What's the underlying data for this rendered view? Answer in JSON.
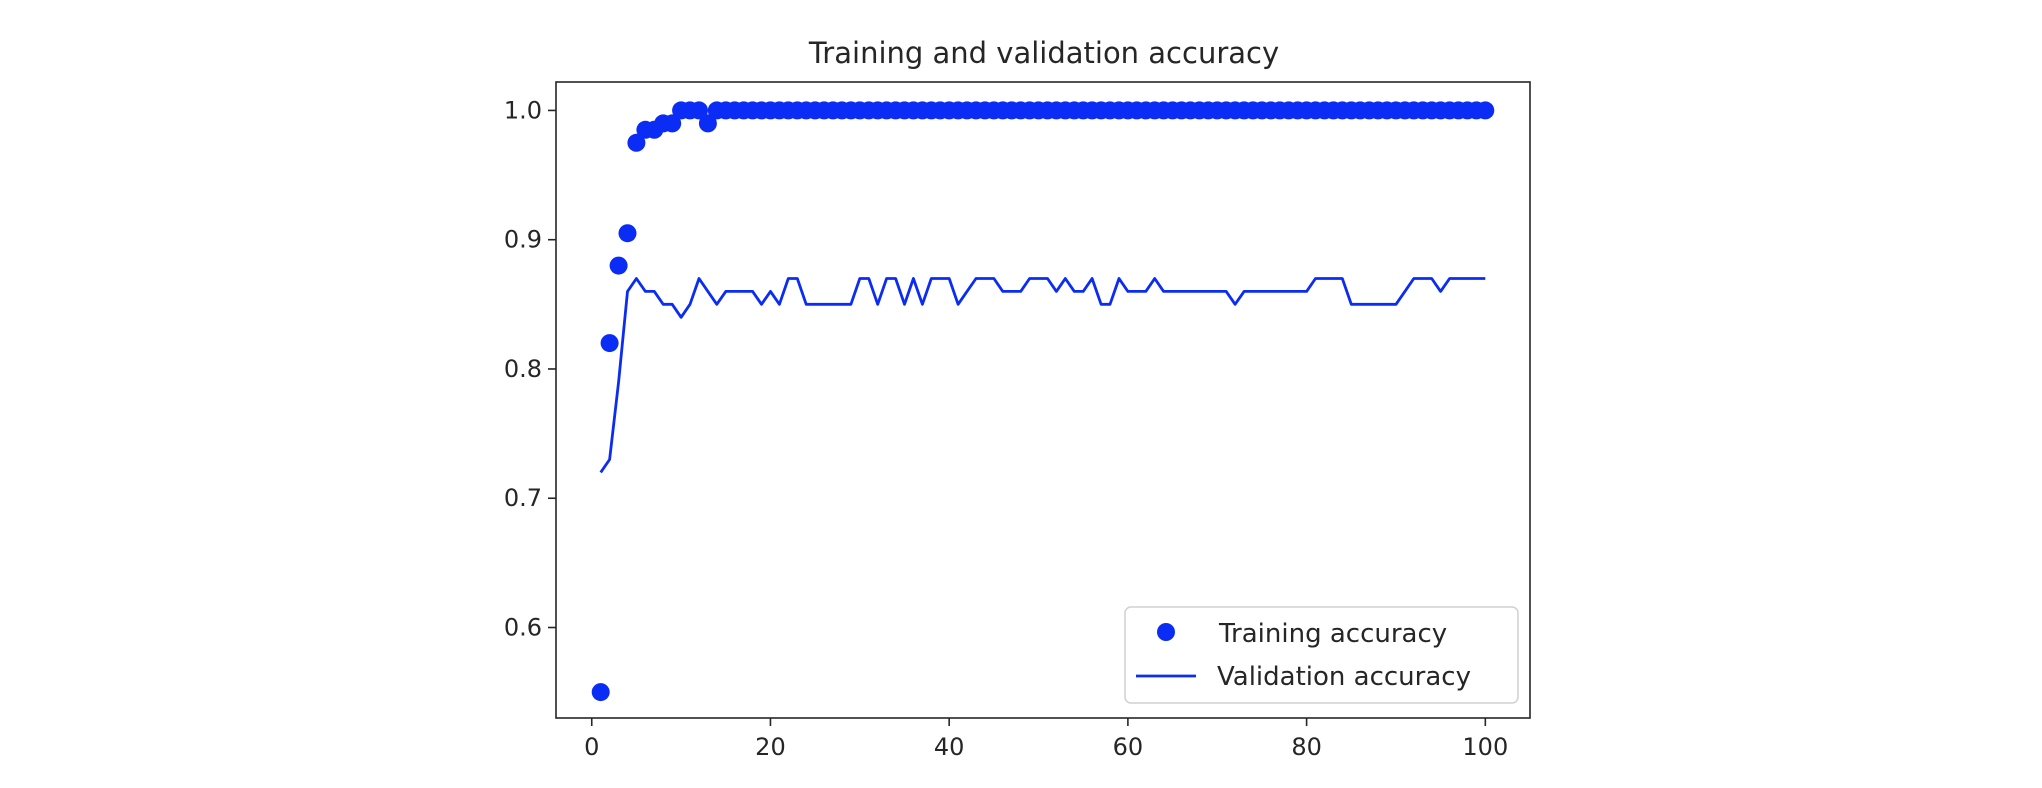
{
  "chart_data": {
    "type": "line",
    "title": "Training and validation accuracy",
    "xlabel": "",
    "ylabel": "",
    "xlim": [
      -4,
      105
    ],
    "ylim": [
      0.53,
      1.022
    ],
    "x_ticks": [
      0,
      20,
      40,
      60,
      80,
      100
    ],
    "y_ticks": [
      0.6,
      0.7,
      0.8,
      0.9,
      1.0
    ],
    "x_tick_labels": [
      "0",
      "20",
      "40",
      "60",
      "80",
      "100"
    ],
    "y_tick_labels": [
      "0.6",
      "0.7",
      "0.8",
      "0.9",
      "1.0"
    ],
    "grid": false,
    "legend_position": "lower-right",
    "series": [
      {
        "name": "Training accuracy",
        "style": "scatter",
        "color": "#0a2cf5",
        "x": [
          1,
          2,
          3,
          4,
          5,
          6,
          7,
          8,
          9,
          10,
          11,
          12,
          13,
          14,
          15,
          16,
          17,
          18,
          19,
          20,
          21,
          22,
          23,
          24,
          25,
          26,
          27,
          28,
          29,
          30,
          31,
          32,
          33,
          34,
          35,
          36,
          37,
          38,
          39,
          40,
          41,
          42,
          43,
          44,
          45,
          46,
          47,
          48,
          49,
          50,
          51,
          52,
          53,
          54,
          55,
          56,
          57,
          58,
          59,
          60,
          61,
          62,
          63,
          64,
          65,
          66,
          67,
          68,
          69,
          70,
          71,
          72,
          73,
          74,
          75,
          76,
          77,
          78,
          79,
          80,
          81,
          82,
          83,
          84,
          85,
          86,
          87,
          88,
          89,
          90,
          91,
          92,
          93,
          94,
          95,
          96,
          97,
          98,
          99,
          100
        ],
        "values": [
          0.55,
          0.82,
          0.88,
          0.905,
          0.975,
          0.985,
          0.985,
          0.99,
          0.99,
          1.0,
          1.0,
          1.0,
          0.99,
          1.0,
          1.0,
          1.0,
          1.0,
          1.0,
          1.0,
          1.0,
          1.0,
          1.0,
          1.0,
          1.0,
          1.0,
          1.0,
          1.0,
          1.0,
          1.0,
          1.0,
          1.0,
          1.0,
          1.0,
          1.0,
          1.0,
          1.0,
          1.0,
          1.0,
          1.0,
          1.0,
          1.0,
          1.0,
          1.0,
          1.0,
          1.0,
          1.0,
          1.0,
          1.0,
          1.0,
          1.0,
          1.0,
          1.0,
          1.0,
          1.0,
          1.0,
          1.0,
          1.0,
          1.0,
          1.0,
          1.0,
          1.0,
          1.0,
          1.0,
          1.0,
          1.0,
          1.0,
          1.0,
          1.0,
          1.0,
          1.0,
          1.0,
          1.0,
          1.0,
          1.0,
          1.0,
          1.0,
          1.0,
          1.0,
          1.0,
          1.0,
          1.0,
          1.0,
          1.0,
          1.0,
          1.0,
          1.0,
          1.0,
          1.0,
          1.0,
          1.0,
          1.0,
          1.0,
          1.0,
          1.0,
          1.0,
          1.0,
          1.0,
          1.0,
          1.0,
          1.0
        ]
      },
      {
        "name": "Validation accuracy",
        "style": "line",
        "color": "#0a2cf5",
        "x": [
          1,
          2,
          3,
          4,
          5,
          6,
          7,
          8,
          9,
          10,
          11,
          12,
          13,
          14,
          15,
          16,
          17,
          18,
          19,
          20,
          21,
          22,
          23,
          24,
          25,
          26,
          27,
          28,
          29,
          30,
          31,
          32,
          33,
          34,
          35,
          36,
          37,
          38,
          39,
          40,
          41,
          42,
          43,
          44,
          45,
          46,
          47,
          48,
          49,
          50,
          51,
          52,
          53,
          54,
          55,
          56,
          57,
          58,
          59,
          60,
          61,
          62,
          63,
          64,
          65,
          66,
          67,
          68,
          69,
          70,
          71,
          72,
          73,
          74,
          75,
          76,
          77,
          78,
          79,
          80,
          81,
          82,
          83,
          84,
          85,
          86,
          87,
          88,
          89,
          90,
          91,
          92,
          93,
          94,
          95,
          96,
          97,
          98,
          99,
          100
        ],
        "values": [
          0.72,
          0.73,
          0.79,
          0.86,
          0.87,
          0.86,
          0.86,
          0.85,
          0.85,
          0.84,
          0.85,
          0.87,
          0.86,
          0.85,
          0.86,
          0.86,
          0.86,
          0.86,
          0.85,
          0.86,
          0.85,
          0.87,
          0.87,
          0.85,
          0.85,
          0.85,
          0.85,
          0.85,
          0.85,
          0.87,
          0.87,
          0.85,
          0.87,
          0.87,
          0.85,
          0.87,
          0.85,
          0.87,
          0.87,
          0.87,
          0.85,
          0.86,
          0.87,
          0.87,
          0.87,
          0.86,
          0.86,
          0.86,
          0.87,
          0.87,
          0.87,
          0.86,
          0.87,
          0.86,
          0.86,
          0.87,
          0.85,
          0.85,
          0.87,
          0.86,
          0.86,
          0.86,
          0.87,
          0.86,
          0.86,
          0.86,
          0.86,
          0.86,
          0.86,
          0.86,
          0.86,
          0.85,
          0.86,
          0.86,
          0.86,
          0.86,
          0.86,
          0.86,
          0.86,
          0.86,
          0.87,
          0.87,
          0.87,
          0.87,
          0.85,
          0.85,
          0.85,
          0.85,
          0.85,
          0.85,
          0.86,
          0.87,
          0.87,
          0.87,
          0.86,
          0.87,
          0.87,
          0.87,
          0.87,
          0.87
        ]
      }
    ]
  }
}
